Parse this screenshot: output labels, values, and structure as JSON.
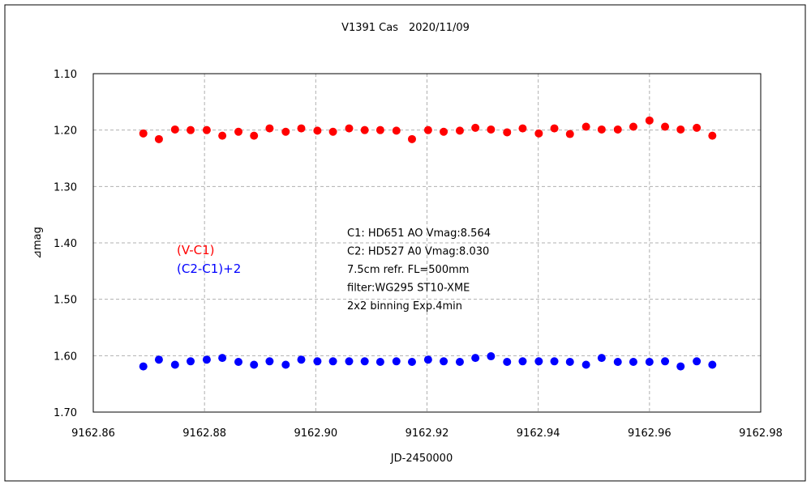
{
  "chart_data": {
    "type": "scatter",
    "title": "V1391 Cas　2020/11/09",
    "xlabel": "JD-2450000",
    "ylabel": "⊿mag",
    "xlim": [
      9162.86,
      9162.98
    ],
    "ylim": [
      1.1,
      1.7
    ],
    "y_inverted": true,
    "grid": true,
    "xticks": [
      "9162.86",
      "9162.88",
      "9162.90",
      "9162.92",
      "9162.94",
      "9162.96",
      "9162.98"
    ],
    "yticks": [
      "1.10",
      "1.20",
      "1.30",
      "1.40",
      "1.50",
      "1.60",
      "1.70"
    ],
    "x": [
      9162.869,
      9162.8718,
      9162.8747,
      9162.8775,
      9162.8804,
      9162.8832,
      9162.8861,
      9162.8889,
      9162.8917,
      9162.8946,
      9162.8974,
      9162.9003,
      9162.9031,
      9162.906,
      9162.9088,
      9162.9116,
      9162.9145,
      9162.9173,
      9162.9202,
      9162.923,
      9162.9259,
      9162.9287,
      9162.9315,
      9162.9344,
      9162.9372,
      9162.9401,
      9162.9429,
      9162.9457,
      9162.9486,
      9162.9514,
      9162.9543,
      9162.9571,
      9162.96,
      9162.9628,
      9162.9656,
      9162.9685,
      9162.9713
    ],
    "series": [
      {
        "name": "(V-C1)",
        "color": "#ff0000",
        "values": [
          1.206,
          1.216,
          1.199,
          1.2,
          1.2,
          1.21,
          1.203,
          1.21,
          1.197,
          1.203,
          1.197,
          1.201,
          1.203,
          1.197,
          1.2,
          1.2,
          1.201,
          1.216,
          1.2,
          1.203,
          1.201,
          1.196,
          1.199,
          1.204,
          1.197,
          1.206,
          1.197,
          1.207,
          1.194,
          1.199,
          1.199,
          1.194,
          1.183,
          1.194,
          1.199,
          1.196,
          1.21
        ]
      },
      {
        "name": "(C2-C1)+2",
        "color": "#0000ff",
        "values": [
          1.619,
          1.607,
          1.616,
          1.61,
          1.607,
          1.604,
          1.611,
          1.616,
          1.61,
          1.616,
          1.607,
          1.61,
          1.61,
          1.61,
          1.61,
          1.611,
          1.61,
          1.611,
          1.607,
          1.61,
          1.611,
          1.604,
          1.601,
          1.611,
          1.61,
          1.61,
          1.61,
          1.611,
          1.616,
          1.604,
          1.611,
          1.611,
          1.611,
          1.61,
          1.619,
          1.61,
          1.616
        ]
      }
    ],
    "annotations": [
      "C1: HD651 AO Vmag:8.564",
      "C2: HD527 A0  Vmag:8.030",
      "7.5cm refr. FL=500mm",
      "filter:WG295  ST10-XME",
      "2x2 binning  Exp.4min"
    ]
  }
}
